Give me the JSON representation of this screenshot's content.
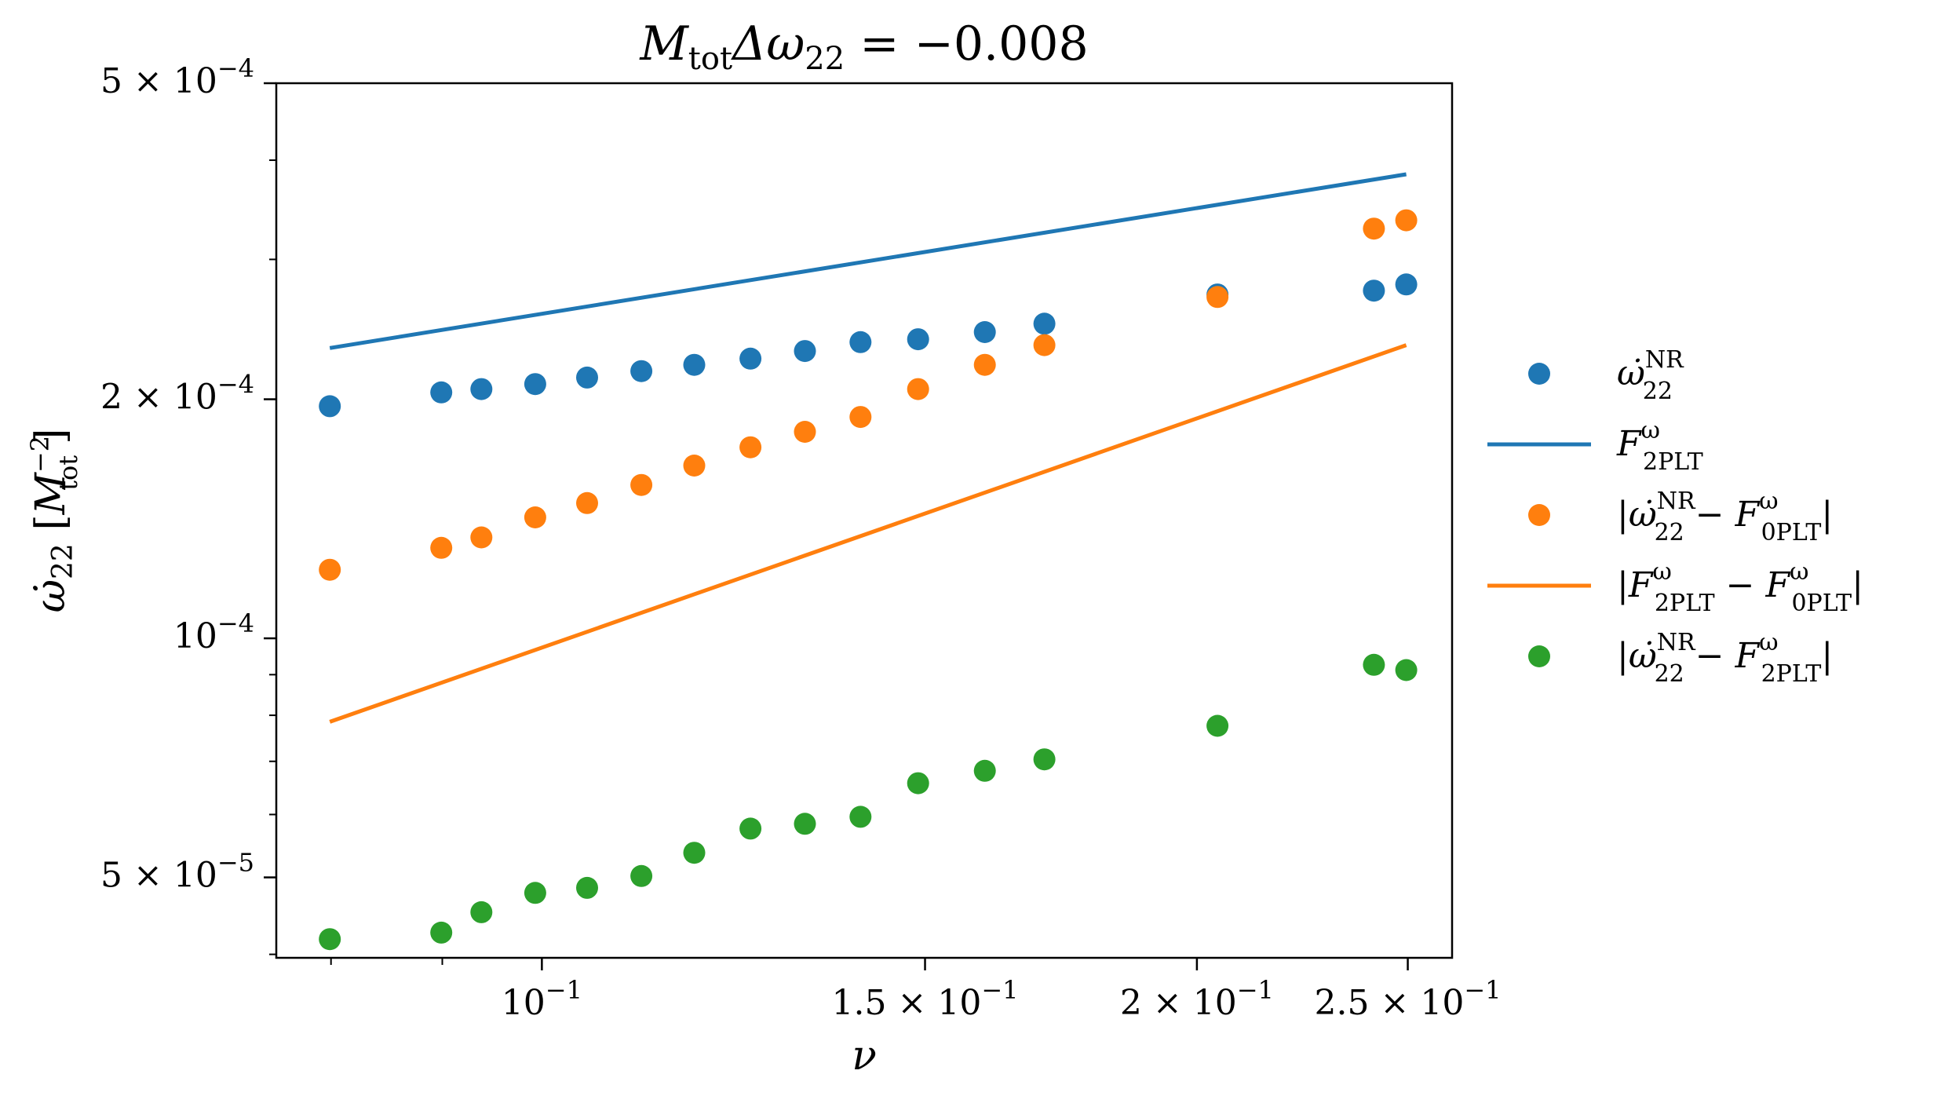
{
  "chart_data": {
    "type": "scatter",
    "title": "M_tot Δω_22 = −0.008",
    "title_parts": {
      "m": "M",
      "tot": "tot",
      "delta": "Δω",
      "sub22": "22",
      "rest": " = −0.008"
    },
    "xlabel": "ν",
    "ylabel": "ω̇_22 [M_tot^−2]",
    "ylabel_parts": {
      "omega": "ω̇",
      "sub22": "22",
      "open": " [",
      "m": "M",
      "exp": "−2",
      "sub": "tot",
      "close": "]"
    },
    "xscale": "log",
    "yscale": "log",
    "xlim": [
      0.0755,
      0.262
    ],
    "ylim": [
      3.96e-05,
      0.0005
    ],
    "xticks": [
      {
        "value": 0.1,
        "base": "10",
        "exp": "−1"
      },
      {
        "value": 0.15,
        "base": "1.5 × 10",
        "exp": "−1"
      },
      {
        "value": 0.2,
        "base": "2 × 10",
        "exp": "−1"
      },
      {
        "value": 0.25,
        "base": "2.5 × 10",
        "exp": "−1"
      }
    ],
    "yticks": [
      {
        "value": 5e-05,
        "base": "5 × 10",
        "exp": "−5"
      },
      {
        "value": 0.0001,
        "base": "10",
        "exp": "−4"
      },
      {
        "value": 0.0002,
        "base": "2 × 10",
        "exp": "−4"
      },
      {
        "value": 0.0005,
        "base": "5 × 10",
        "exp": "−4"
      }
    ],
    "legend": {
      "placement": "outside-right"
    },
    "series": [
      {
        "name": "ω̇_22^NR",
        "label": {
          "pre": "",
          "sym": "ω̇",
          "sub": "22",
          "sup": "NR",
          "mid": "",
          "sym2": "",
          "sub2": "",
          "sup2": "",
          "post": ""
        },
        "kind": "scatter",
        "color": "#1f77b4",
        "x": [
          0.0799,
          0.0899,
          0.0938,
          0.0993,
          0.1049,
          0.1111,
          0.1175,
          0.1247,
          0.1321,
          0.1401,
          0.1489,
          0.1598,
          0.1702,
          0.2044,
          0.2412,
          0.2496
        ],
        "y": [
          0.000196,
          0.000204,
          0.000206,
          0.000209,
          0.000213,
          0.000217,
          0.000221,
          0.000225,
          0.00023,
          0.000236,
          0.000238,
          0.000243,
          0.000249,
          0.000271,
          0.000274,
          0.000279
        ]
      },
      {
        "name": "F_2PLT^ω",
        "label": {
          "pre": "",
          "sym": "F",
          "sub": "2PLT",
          "sup": "ω",
          "mid": "",
          "sym2": "",
          "sub2": "",
          "sup2": "",
          "post": ""
        },
        "kind": "line",
        "color": "#1f77b4",
        "x": [
          0.0799,
          0.2496
        ],
        "y": [
          0.000232,
          0.000384
        ]
      },
      {
        "name": "|ω̇_22^NR − F_0PLT^ω|",
        "label": {
          "pre": "|",
          "sym": "ω̇",
          "sub": "22",
          "sup": "NR",
          "mid": " − ",
          "sym2": "F",
          "sub2": "0PLT",
          "sup2": "ω",
          "post": "|"
        },
        "kind": "scatter",
        "color": "#ff7f0e",
        "x": [
          0.0799,
          0.0899,
          0.0938,
          0.0993,
          0.1049,
          0.1111,
          0.1175,
          0.1247,
          0.1321,
          0.1401,
          0.1489,
          0.1598,
          0.1702,
          0.2044,
          0.2412,
          0.2496
        ],
        "y": [
          0.000122,
          0.00013,
          0.000134,
          0.000142,
          0.000148,
          0.000156,
          0.000165,
          0.000174,
          0.000182,
          0.00019,
          0.000206,
          0.000221,
          0.000234,
          0.000269,
          0.000328,
          0.000336
        ]
      },
      {
        "name": "|F_2PLT^ω − F_0PLT^ω|",
        "label": {
          "pre": "|",
          "sym": "F",
          "sub": "2PLT",
          "sup": "ω",
          "mid": " − ",
          "sym2": "F",
          "sub2": "0PLT",
          "sup2": "ω",
          "post": "|"
        },
        "kind": "line",
        "color": "#ff7f0e",
        "x": [
          0.0799,
          0.2496
        ],
        "y": [
          7.85e-05,
          0.000234
        ]
      },
      {
        "name": "|ω̇_22^NR − F_2PLT^ω|",
        "label": {
          "pre": "|",
          "sym": "ω̇",
          "sub": "22",
          "sup": "NR",
          "mid": " − ",
          "sym2": "F",
          "sub2": "2PLT",
          "sup2": "ω",
          "post": "|"
        },
        "kind": "scatter",
        "color": "#2ca02c",
        "x": [
          0.0799,
          0.0899,
          0.0938,
          0.0993,
          0.1049,
          0.1111,
          0.1175,
          0.1247,
          0.1321,
          0.1401,
          0.1489,
          0.1598,
          0.1702,
          0.2044,
          0.2412,
          0.2496
        ],
        "y": [
          4.18e-05,
          4.26e-05,
          4.52e-05,
          4.78e-05,
          4.85e-05,
          5.02e-05,
          5.37e-05,
          5.76e-05,
          5.84e-05,
          5.96e-05,
          6.57e-05,
          6.81e-05,
          7.04e-05,
          7.76e-05,
          9.26e-05,
          9.12e-05
        ]
      }
    ]
  }
}
